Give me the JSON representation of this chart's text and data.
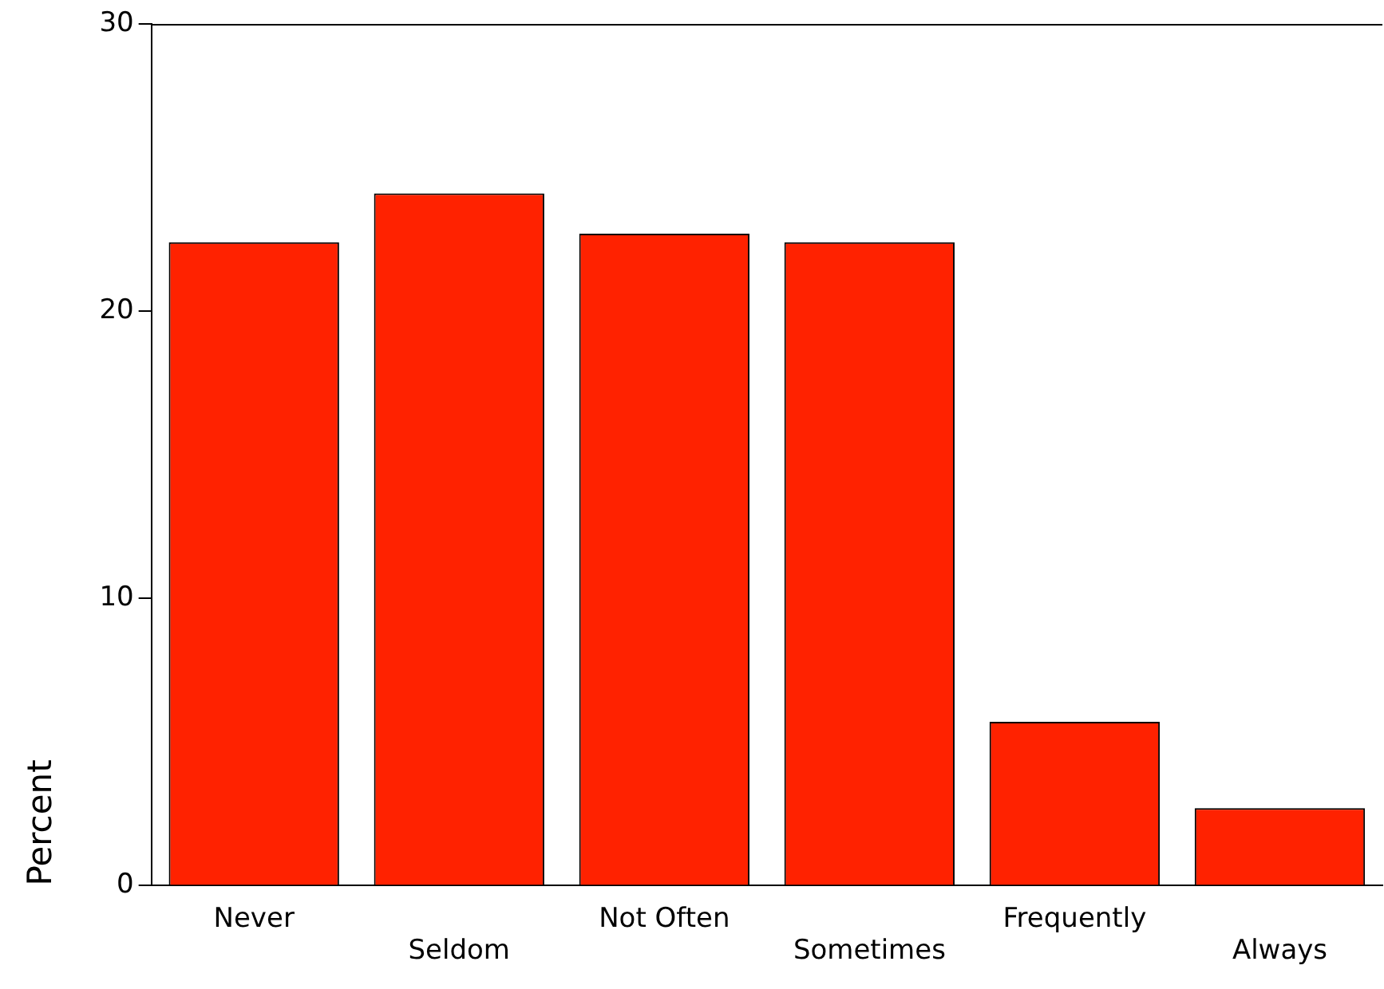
{
  "chart_data": {
    "type": "bar",
    "ylabel": "Percent",
    "categories": [
      "Never",
      "Seldom",
      "Not Often",
      "Sometimes",
      "Frequently",
      "Always"
    ],
    "values": [
      22.4,
      24.1,
      22.7,
      22.4,
      5.7,
      2.7
    ],
    "color": "#ff2200",
    "ylim": [
      0,
      30
    ],
    "yticks": [
      0,
      10,
      20,
      30
    ],
    "grid": false,
    "legend": false
  }
}
